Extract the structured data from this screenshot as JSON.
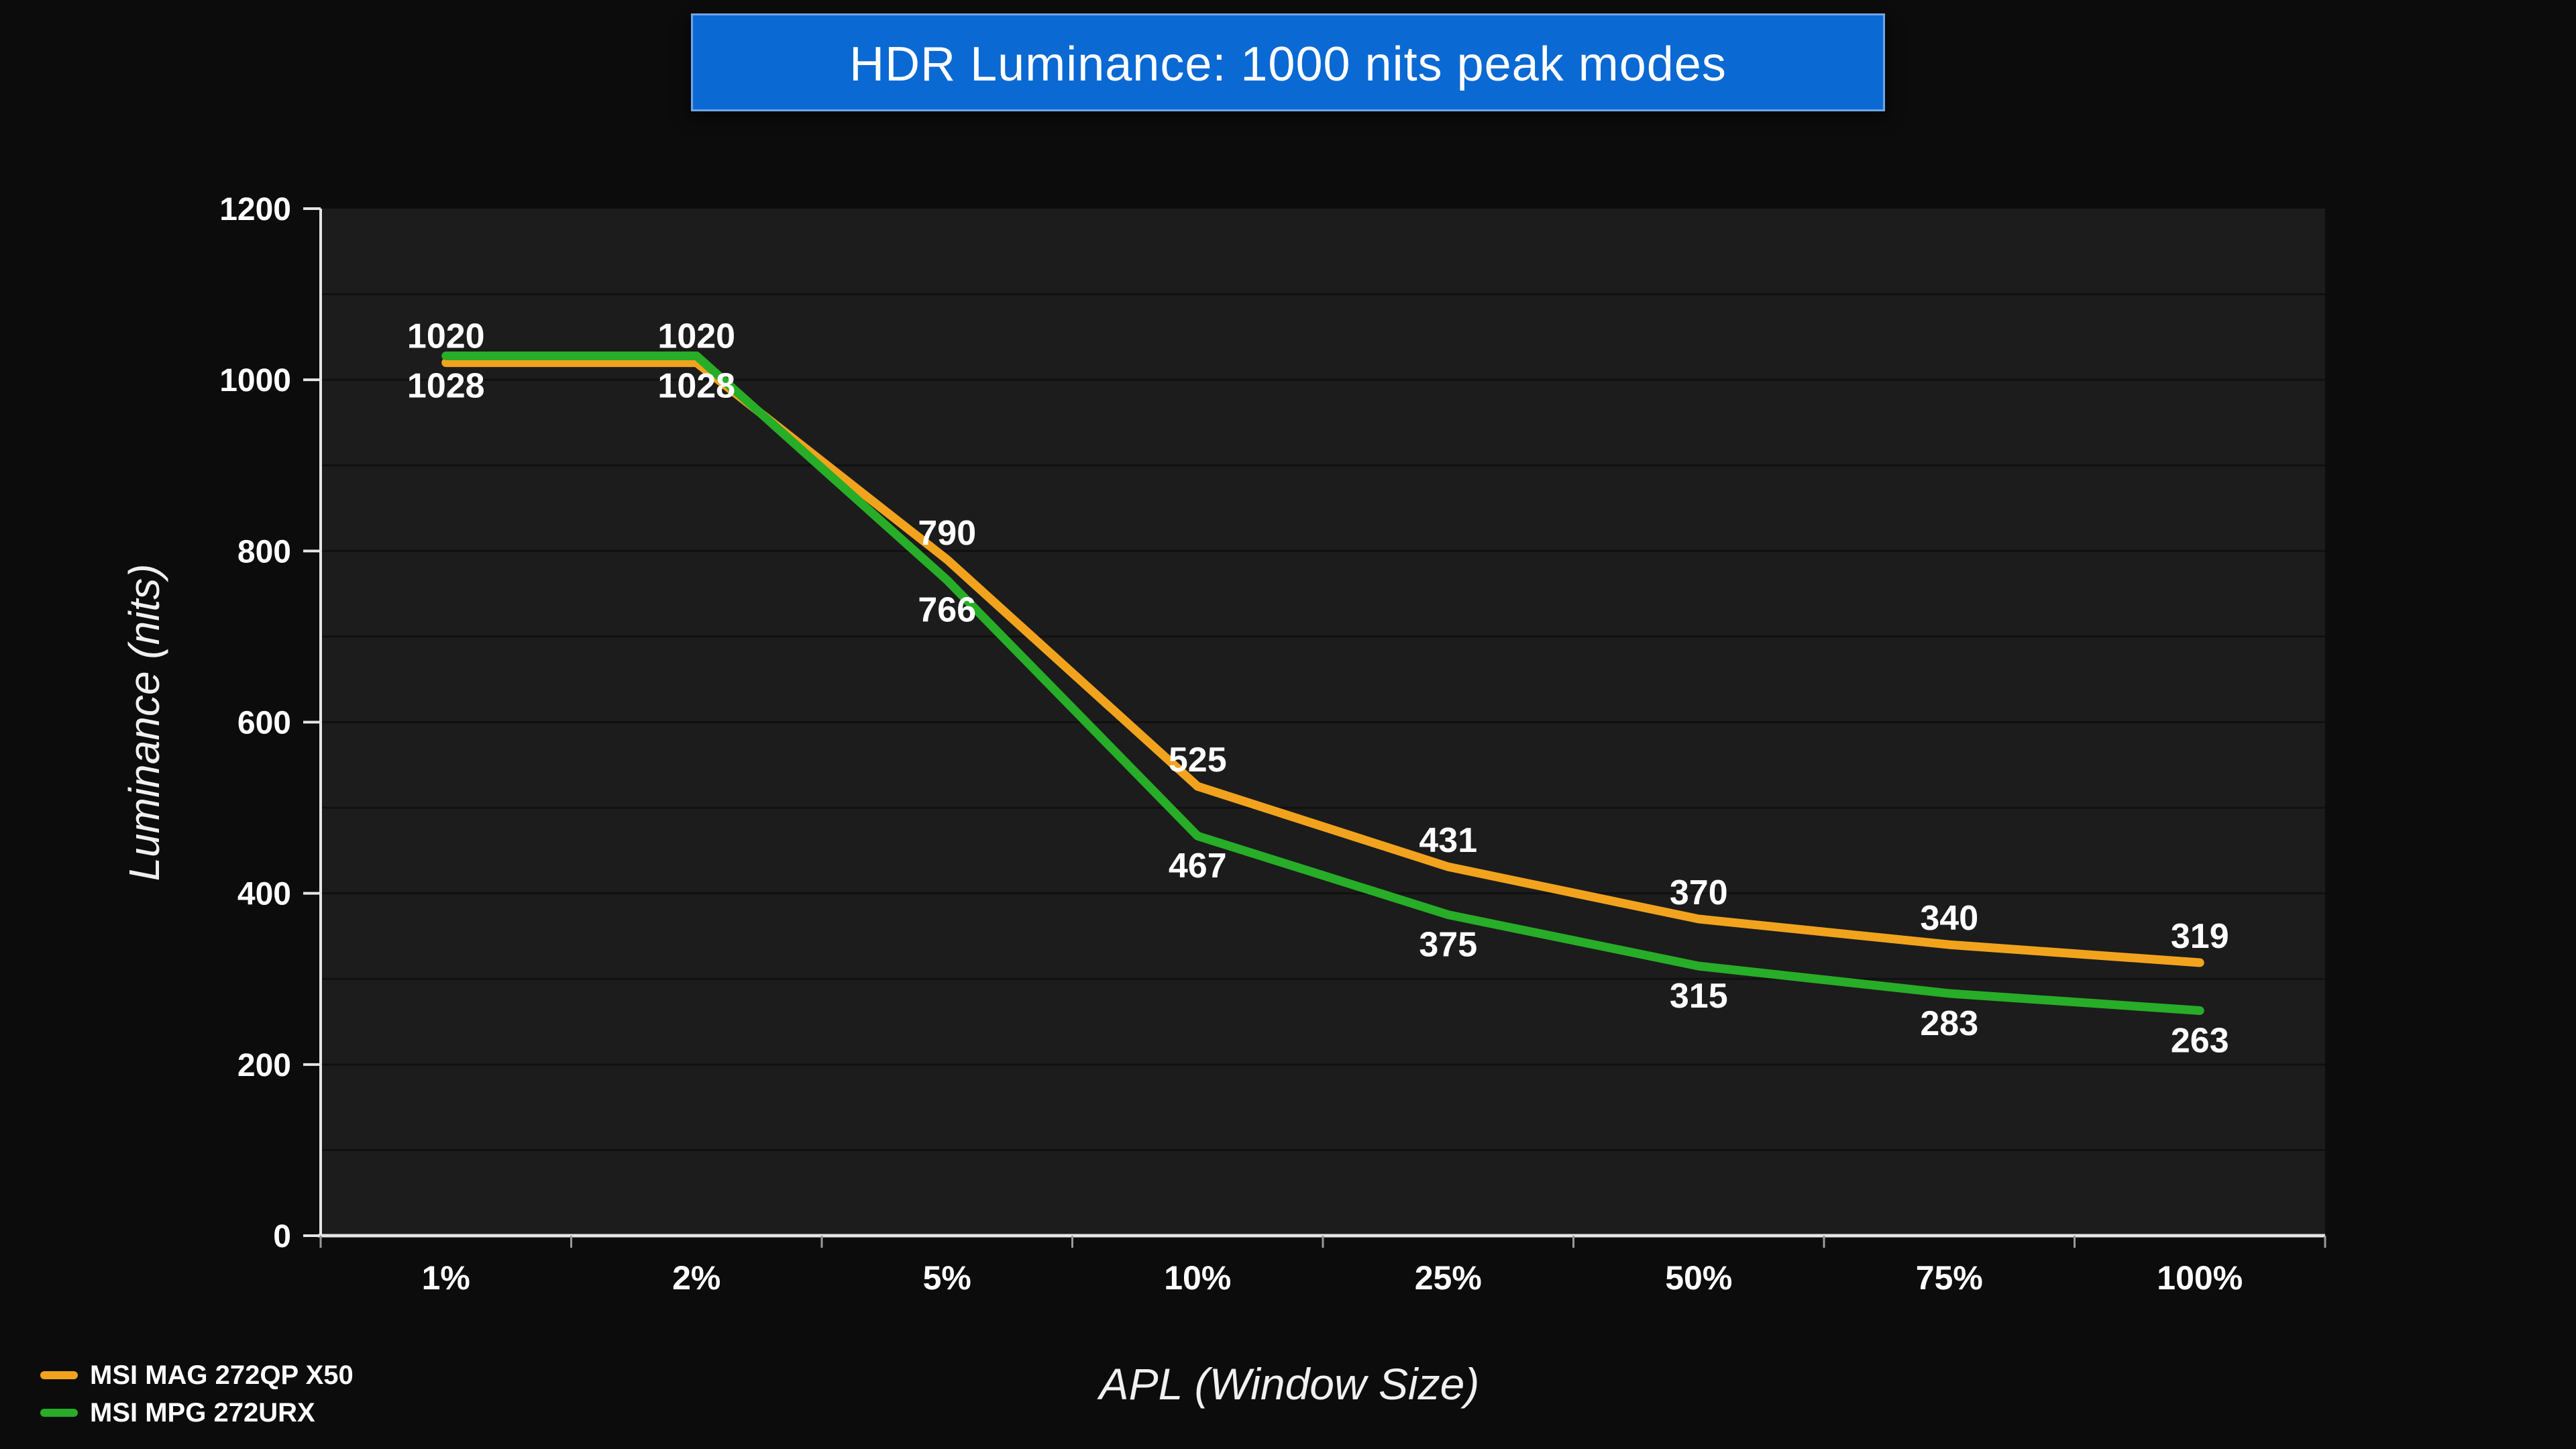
{
  "colors": {
    "background": "#0c0c0c",
    "plot_background": "#1c1c1c",
    "gridline": "#101010",
    "axis": "#e6e6e6",
    "text": "#ffffff",
    "title_background": "#0b69d3",
    "title_border": "#6ea6e8"
  },
  "chart_data": {
    "type": "line",
    "title": "HDR Luminance: 1000 nits peak modes",
    "xlabel": "APL (Window Size)",
    "ylabel": "Luminance (nits)",
    "categories": [
      "1%",
      "2%",
      "5%",
      "10%",
      "25%",
      "50%",
      "75%",
      "100%"
    ],
    "series": [
      {
        "name": "MSI MAG 272QP X50",
        "color": "#f2a31d",
        "values": [
          1020,
          1020,
          790,
          525,
          431,
          370,
          340,
          319
        ],
        "label_position": "above"
      },
      {
        "name": "MSI MPG 272URX",
        "color": "#27ad27",
        "values": [
          1028,
          1028,
          766,
          467,
          375,
          315,
          283,
          263
        ],
        "label_position": "below"
      }
    ],
    "ylim": [
      0,
      1200
    ],
    "ytick_step": 200,
    "grid_step": 100,
    "grid": "horizontal",
    "legend_position": "bottom-left"
  }
}
